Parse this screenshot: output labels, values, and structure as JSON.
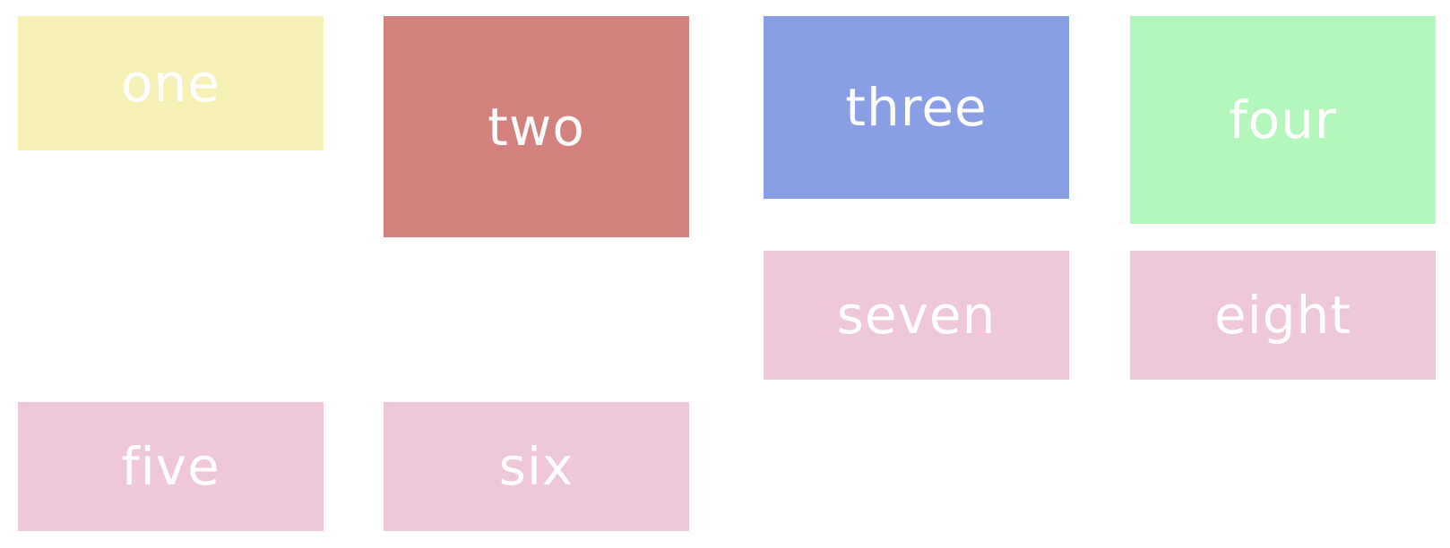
{
  "tiles": [
    {
      "id": "one",
      "label": "one",
      "color": "#f7f0b7"
    },
    {
      "id": "two",
      "label": "two",
      "color": "#d3817d"
    },
    {
      "id": "three",
      "label": "three",
      "color": "#889ee5"
    },
    {
      "id": "four",
      "label": "four",
      "color": "#b3f7bb"
    },
    {
      "id": "seven",
      "label": "seven",
      "color": "#f0c7d9"
    },
    {
      "id": "eight",
      "label": "eight",
      "color": "#f0c7d9"
    },
    {
      "id": "five",
      "label": "five",
      "color": "#f0c7d9"
    },
    {
      "id": "six",
      "label": "six",
      "color": "#f0c7d9"
    }
  ]
}
